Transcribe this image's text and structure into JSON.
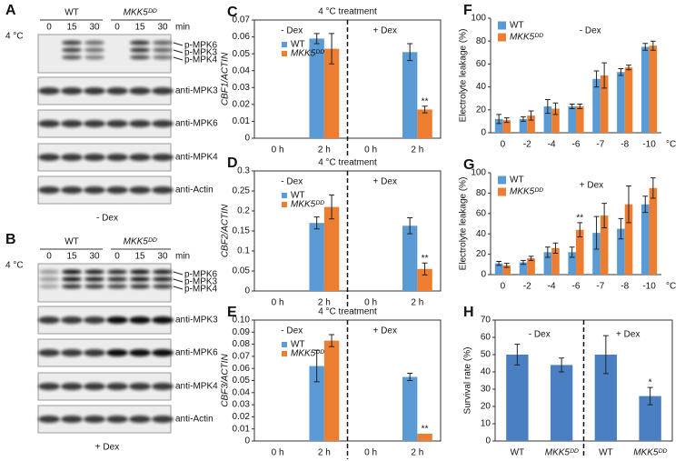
{
  "blots": [
    {
      "label": "A",
      "strain_labels": [
        "WT",
        "MKK5ᴰᴰ"
      ],
      "temperature": "4 °C",
      "times": [
        "0",
        "15",
        "30",
        "0",
        "15",
        "30"
      ],
      "time_unit": "min",
      "phospho_labels": [
        "p-MPK6",
        "p-MPK3",
        "p-MPK4"
      ],
      "antibodies": [
        "anti-MPK3",
        "anti-MPK6",
        "anti-MPK4",
        "anti-Actin"
      ],
      "treatment": "- Dex"
    },
    {
      "label": "B",
      "strain_labels": [
        "WT",
        "MKK5ᴰᴰ"
      ],
      "temperature": "4 °C",
      "times": [
        "0",
        "15",
        "30",
        "0",
        "15",
        "30"
      ],
      "time_unit": "min",
      "phospho_labels": [
        "p-MPK6",
        "p-MPK3",
        "p-MPK4"
      ],
      "antibodies": [
        "anti-MPK3",
        "anti-MPK6",
        "anti-MPK4",
        "anti-Actin"
      ],
      "treatment": "+ Dex"
    }
  ],
  "chart_data": [
    {
      "type": "bar",
      "panel": "C",
      "title": "4 °C treatment",
      "ylabel": "CBF1/ACTIN",
      "categories": [
        "0 h",
        "2 h",
        "0 h",
        "2 h"
      ],
      "sections": [
        "- Dex",
        "+ Dex"
      ],
      "legend": "upper left",
      "ylim": [
        0,
        0.07
      ],
      "yticks": [
        0,
        0.01,
        0.02,
        0.03,
        0.04,
        0.05,
        0.06,
        0.07
      ],
      "series": [
        {
          "name": "WT",
          "color": "#5b9bd5",
          "values": [
            0,
            0.059,
            0,
            0.051
          ],
          "errors": [
            null,
            0.003,
            null,
            0.005
          ]
        },
        {
          "name": "MKK5ᴰᴰ",
          "color": "#ed7d31",
          "values": [
            0,
            0.053,
            0,
            0.017
          ],
          "errors": [
            null,
            0.009,
            null,
            0.002
          ],
          "significance": [
            null,
            null,
            null,
            "**"
          ]
        }
      ]
    },
    {
      "type": "bar",
      "panel": "D",
      "title": "4 °C treatment",
      "ylabel": "CBF2/ACTIN",
      "categories": [
        "0 h",
        "2 h",
        "0 h",
        "2 h"
      ],
      "sections": [
        "- Dex",
        "+ Dex"
      ],
      "legend": "upper left",
      "ylim": [
        0,
        0.3
      ],
      "yticks": [
        0,
        0.05,
        0.1,
        0.15,
        0.2,
        0.25,
        0.3
      ],
      "series": [
        {
          "name": "WT",
          "color": "#5b9bd5",
          "values": [
            0,
            0.17,
            0,
            0.163
          ],
          "errors": [
            null,
            0.015,
            null,
            0.02
          ]
        },
        {
          "name": "MKK5ᴰᴰ",
          "color": "#ed7d31",
          "values": [
            0,
            0.21,
            0,
            0.055
          ],
          "errors": [
            null,
            0.03,
            null,
            0.015
          ],
          "significance": [
            null,
            null,
            null,
            "**"
          ]
        }
      ]
    },
    {
      "type": "bar",
      "panel": "E",
      "title": "4 °C treatment",
      "ylabel": "CBF3/ACTIN",
      "categories": [
        "0 h",
        "2 h",
        "0 h",
        "2 h"
      ],
      "sections": [
        "- Dex",
        "+ Dex"
      ],
      "legend": "upper left",
      "ylim": [
        0,
        0.1
      ],
      "yticks": [
        0,
        0.01,
        0.02,
        0.03,
        0.04,
        0.05,
        0.06,
        0.07,
        0.08,
        0.09,
        {
          "value": 0.1,
          "label": "0.10"
        }
      ],
      "series": [
        {
          "name": "WT",
          "color": "#5b9bd5",
          "values": [
            0,
            0.062,
            0,
            0.053
          ],
          "errors": [
            null,
            0.013,
            null,
            0.003
          ]
        },
        {
          "name": "MKK5ᴰᴰ",
          "color": "#ed7d31",
          "values": [
            0,
            0.083,
            0,
            0.006
          ],
          "errors": [
            null,
            0.005,
            null,
            null
          ],
          "significance": [
            null,
            null,
            null,
            "**"
          ]
        }
      ]
    },
    {
      "type": "bar",
      "panel": "F",
      "ylabel": "Electrolyte leakage (%)",
      "xlabel": "°C",
      "annotation": "- Dex",
      "legend": "upper left",
      "categories": [
        "0",
        "-2",
        "-4",
        "-6",
        "-7",
        "-8",
        "-10"
      ],
      "ylim": [
        0,
        100
      ],
      "yticks": [
        0,
        20,
        40,
        60,
        80,
        100
      ],
      "series": [
        {
          "name": "WT",
          "color": "#5b9bd5",
          "values": [
            12,
            12,
            23,
            23,
            47,
            53,
            75
          ],
          "errors": [
            4,
            2,
            6,
            2,
            7,
            3,
            3
          ]
        },
        {
          "name": "MKK5ᴰᴰ",
          "color": "#ed7d31",
          "values": [
            11,
            15,
            21,
            23,
            50,
            57,
            76
          ],
          "errors": [
            2,
            4,
            5,
            2,
            11,
            2,
            4
          ]
        }
      ]
    },
    {
      "type": "bar",
      "panel": "G",
      "ylabel": "Electrolyte leakage (%)",
      "xlabel": "°C",
      "annotation": "+ Dex",
      "legend": "upper left",
      "categories": [
        "0",
        "-2",
        "-4",
        "-6",
        "-7",
        "-8",
        "-10"
      ],
      "ylim": [
        0,
        100
      ],
      "yticks": [
        0,
        20,
        40,
        60,
        80,
        100
      ],
      "series": [
        {
          "name": "WT",
          "color": "#5b9bd5",
          "values": [
            11,
            12,
            22,
            22,
            41,
            45,
            69
          ],
          "errors": [
            2,
            2,
            5,
            5,
            16,
            10,
            8
          ]
        },
        {
          "name": "MKK5ᴰᴰ",
          "color": "#ed7d31",
          "values": [
            9,
            16,
            26,
            44,
            58,
            69,
            85
          ],
          "errors": [
            2,
            2,
            5,
            7,
            12,
            18,
            10
          ],
          "significance": [
            null,
            null,
            null,
            "**",
            null,
            null,
            null
          ]
        }
      ]
    },
    {
      "type": "bar",
      "panel": "H",
      "ylabel": "Survival rate (%)",
      "sections": [
        "- Dex",
        "+ Dex"
      ],
      "categories": [
        "WT",
        "MKK5ᴰᴰ",
        "WT",
        "MKK5ᴰᴰ"
      ],
      "ylim": [
        0,
        70
      ],
      "yticks": [
        0,
        10,
        20,
        30,
        40,
        50,
        60,
        70
      ],
      "series": [
        {
          "color": "#4a7fc1",
          "values": [
            50,
            44,
            50,
            26
          ],
          "errors": [
            6,
            4,
            11,
            5
          ],
          "significance": [
            null,
            null,
            null,
            "*"
          ]
        }
      ]
    }
  ]
}
